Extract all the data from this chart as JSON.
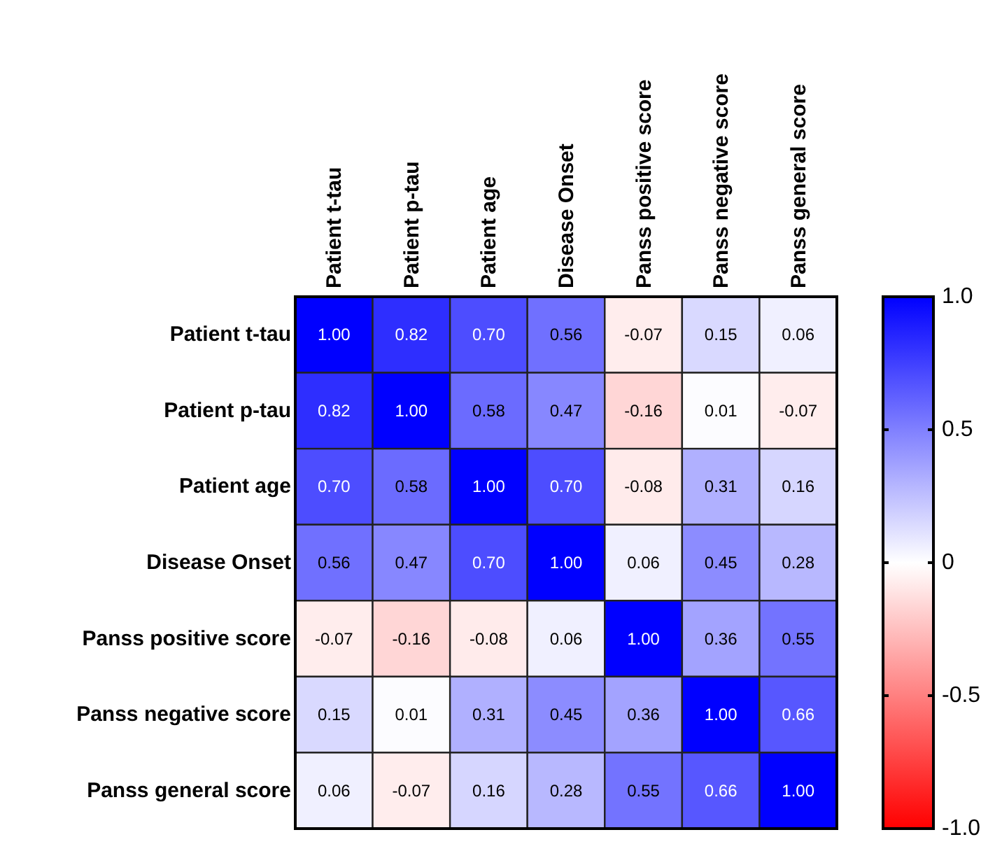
{
  "chart_data": {
    "type": "heatmap",
    "categories": [
      "Patient t-tau",
      "Patient p-tau",
      "Patient age",
      "Disease Onset",
      "Panss positive score",
      "Panss negative score",
      "Panss general score"
    ],
    "y_categories": [
      "Patient t-tau",
      "Patient p-tau",
      "Patient age",
      "Disease Onset",
      "Panss positive score",
      "Panss negative score",
      "Panss general score"
    ],
    "cells": [
      [
        1.0,
        0.82,
        0.7,
        0.56,
        -0.07,
        0.15,
        0.06
      ],
      [
        0.82,
        1.0,
        0.58,
        0.47,
        -0.16,
        0.01,
        -0.07
      ],
      [
        0.7,
        0.58,
        1.0,
        0.7,
        -0.08,
        0.31,
        0.16
      ],
      [
        0.56,
        0.47,
        0.7,
        1.0,
        0.06,
        0.45,
        0.28
      ],
      [
        -0.07,
        -0.16,
        -0.08,
        0.06,
        1.0,
        0.36,
        0.55
      ],
      [
        0.15,
        0.01,
        0.31,
        0.45,
        0.36,
        1.0,
        0.66
      ],
      [
        0.06,
        -0.07,
        0.16,
        0.28,
        0.55,
        0.66,
        1.0
      ]
    ],
    "cell_labels": [
      [
        "1.00",
        "0.82",
        "0.70",
        "0.56",
        "-0.07",
        "0.15",
        "0.06"
      ],
      [
        "0.82",
        "1.00",
        "0.58",
        "0.47",
        "-0.16",
        "0.01",
        "-0.07"
      ],
      [
        "0.70",
        "0.58",
        "1.00",
        "0.70",
        "-0.08",
        "0.31",
        "0.16"
      ],
      [
        "0.56",
        "0.47",
        "0.70",
        "1.00",
        "0.06",
        "0.45",
        "0.28"
      ],
      [
        "-0.07",
        "-0.16",
        "-0.08",
        "0.06",
        "1.00",
        "0.36",
        "0.55"
      ],
      [
        "0.15",
        "0.01",
        "0.31",
        "0.45",
        "0.36",
        "1.00",
        "0.66"
      ],
      [
        "0.06",
        "-0.07",
        "0.16",
        "0.28",
        "0.55",
        "0.66",
        "1.00"
      ]
    ],
    "colors": [
      "#ff0000",
      "#ffffff",
      "#0000ff"
    ],
    "clim": [
      -1,
      1
    ],
    "cticks": [
      {
        "value": 1,
        "label": "1.0"
      },
      0.5,
      0,
      -0.5,
      {
        "value": -1,
        "label": "-1.0"
      }
    ]
  }
}
